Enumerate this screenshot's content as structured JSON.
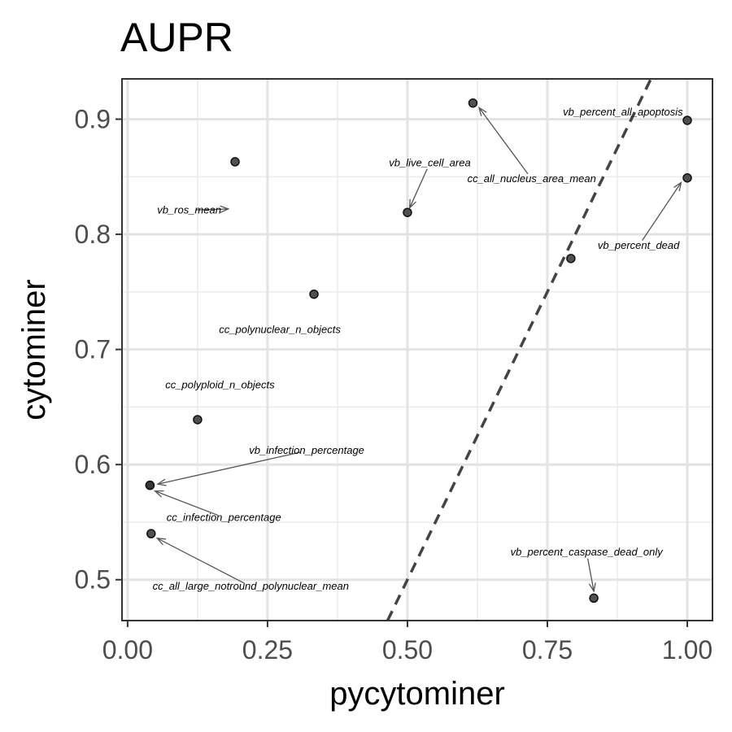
{
  "chart_data": {
    "type": "scatter",
    "title": "AUPR",
    "xlabel": "pycytominer",
    "ylabel": "cytominer",
    "xlim": [
      -0.01,
      1.045
    ],
    "ylim": [
      0.4645,
      0.935
    ],
    "x_ticks": [
      0.0,
      0.25,
      0.5,
      0.75,
      1.0
    ],
    "x_tick_labels": [
      "0.00",
      "0.25",
      "0.50",
      "0.75",
      "1.00"
    ],
    "y_ticks": [
      0.5,
      0.6,
      0.7,
      0.8,
      0.9
    ],
    "y_tick_labels": [
      "0.5",
      "0.6",
      "0.7",
      "0.8",
      "0.9"
    ],
    "grid": true,
    "reference_line": {
      "style": "dashed",
      "slope": 1,
      "intercept": 0
    },
    "points": [
      {
        "x": 0.192,
        "y": 0.863
      },
      {
        "x": 0.5,
        "y": 0.819
      },
      {
        "x": 0.617,
        "y": 0.914
      },
      {
        "x": 1.0,
        "y": 0.899
      },
      {
        "x": 1.0,
        "y": 0.849
      },
      {
        "x": 0.792,
        "y": 0.779
      },
      {
        "x": 0.333,
        "y": 0.748
      },
      {
        "x": 0.125,
        "y": 0.639
      },
      {
        "x": 0.04,
        "y": 0.582
      },
      {
        "x": 0.04,
        "y": 0.582
      },
      {
        "x": 0.042,
        "y": 0.54
      },
      {
        "x": 0.833,
        "y": 0.484
      }
    ],
    "annotations": [
      {
        "text": "vb_ros_mean",
        "x": 0.11,
        "y": 0.821,
        "px": 0.18,
        "py": 0.822,
        "arrow": true
      },
      {
        "text": "vb_live_cell_area",
        "x": 0.54,
        "y": 0.862,
        "px": 0.504,
        "py": 0.823,
        "arrow": true
      },
      {
        "text": "cc_all_nucleus_area_mean",
        "x": 0.722,
        "y": 0.848,
        "px": 0.628,
        "py": 0.91,
        "arrow": true
      },
      {
        "text": "vb_percent_all_apoptosis",
        "x": 0.885,
        "y": 0.906,
        "px": null,
        "py": null,
        "arrow": false
      },
      {
        "text": "vb_percent_dead",
        "x": 0.913,
        "y": 0.79,
        "px": 0.989,
        "py": 0.845,
        "arrow": true
      },
      {
        "text": "cc_polynuclear_n_objects",
        "x": 0.272,
        "y": 0.717,
        "px": null,
        "py": null,
        "arrow": false
      },
      {
        "text": "cc_polyploid_n_objects",
        "x": 0.165,
        "y": 0.669,
        "px": null,
        "py": null,
        "arrow": false
      },
      {
        "text": "vb_infection_percentage",
        "x": 0.32,
        "y": 0.612,
        "px": 0.054,
        "py": 0.583,
        "arrow": true
      },
      {
        "text": "cc_infection_percentage",
        "x": 0.172,
        "y": 0.554,
        "px": 0.049,
        "py": 0.577,
        "arrow": true
      },
      {
        "text": "cc_all_large_notround_polynuclear_mean",
        "x": 0.22,
        "y": 0.494,
        "px": 0.053,
        "py": 0.536,
        "arrow": true
      },
      {
        "text": "vb_percent_caspase_dead_only",
        "x": 0.82,
        "y": 0.524,
        "px": 0.833,
        "py": 0.49,
        "arrow": true
      }
    ]
  }
}
